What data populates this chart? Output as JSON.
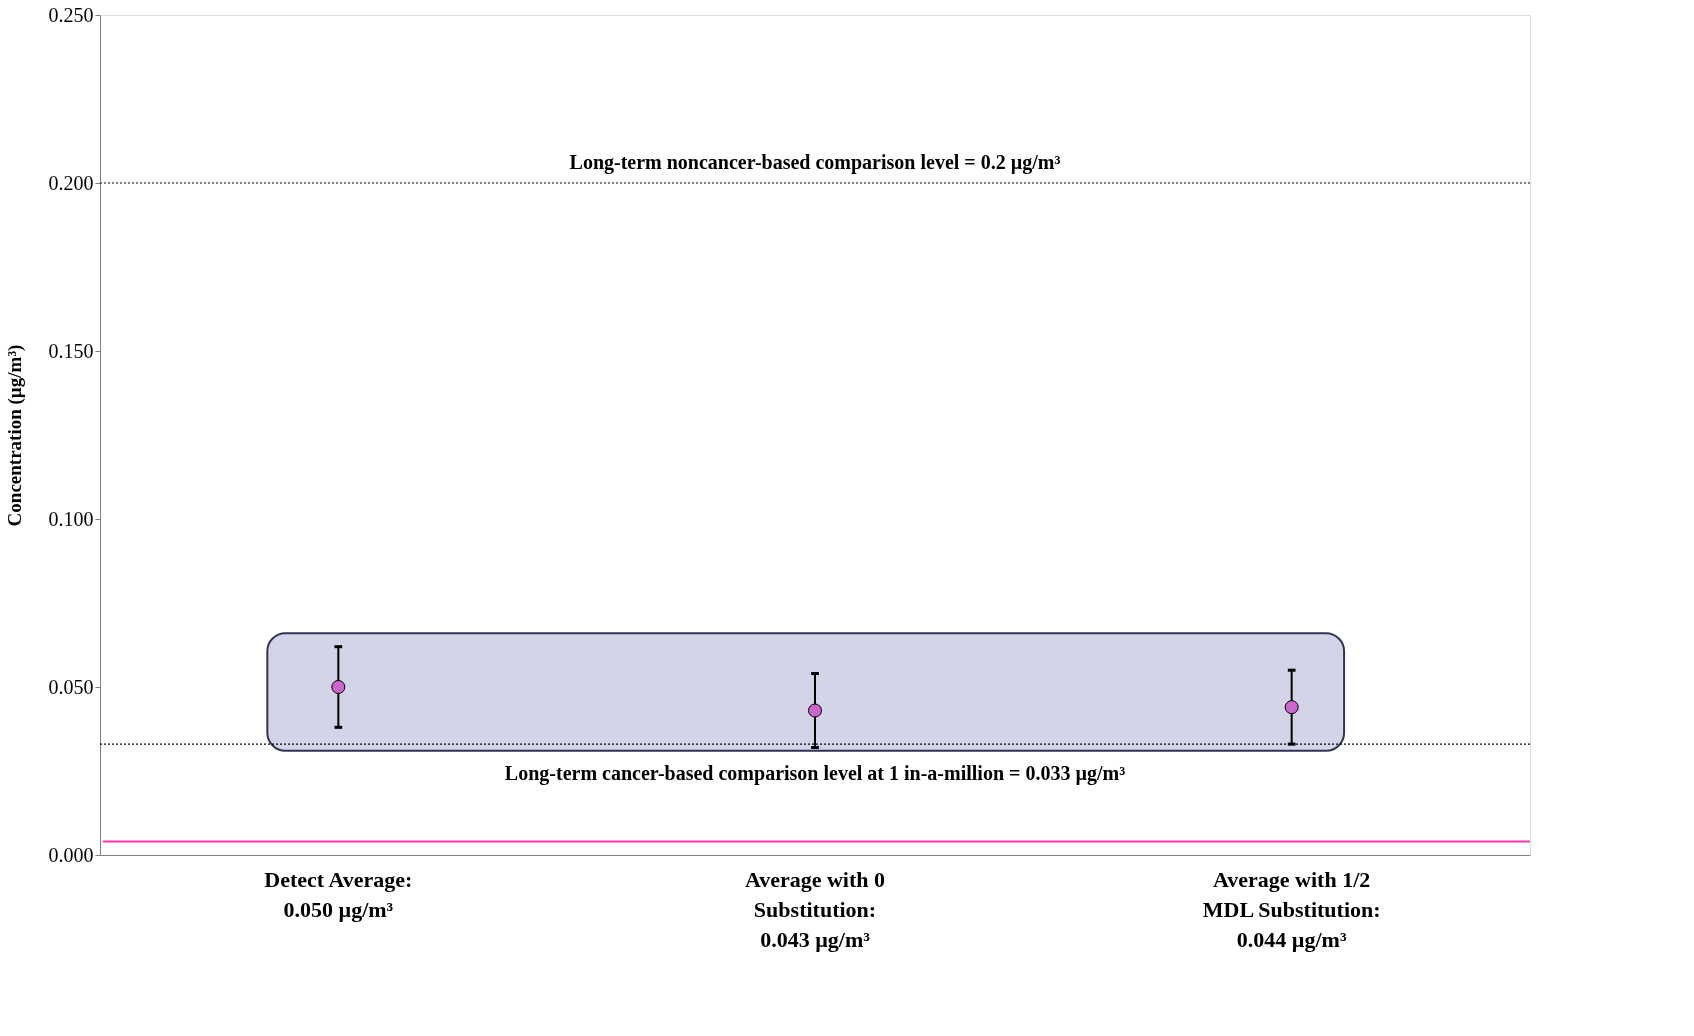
{
  "chart_data": {
    "type": "scatter",
    "ylabel": "Concentration (µg/m³)",
    "categories": [
      "Detect Average:\n0.050 µg/m³",
      "Average with  0\nSubstitution:\n0.043 µg/m³",
      "Average with  1/2\nMDL Substitution:\n0.044 µg/m³"
    ],
    "series": [
      {
        "color": "#cc66cc",
        "values": [
          0.05,
          0.043,
          0.044
        ],
        "errors": [
          [
            0.038,
            0.062
          ],
          [
            0.032,
            0.054
          ],
          [
            0.033,
            0.055
          ]
        ]
      }
    ],
    "marker": "circle",
    "ylim": [
      0,
      0.25
    ],
    "yticks": [
      {
        "value": 0,
        "label": "0.000"
      },
      {
        "value": 0.05,
        "label": "0.050"
      },
      {
        "value": 0.1,
        "label": "0.100"
      },
      {
        "value": 0.15,
        "label": "0.150"
      },
      {
        "value": 0.2,
        "label": "0.200"
      },
      {
        "value": 0.25,
        "label": "0.250"
      }
    ],
    "ref_lines": [
      {
        "axis": "y",
        "value": 0.2,
        "label": "Long-term noncancer-based comparison level = 0.2 µg/m³",
        "color": "#000000",
        "line_style": "dotted"
      },
      {
        "axis": "y",
        "value": 0.033,
        "label": "Long-term cancer-based comparison level at 1 in-a-million = 0.033 µg/m³",
        "color": "#000000",
        "line_style": "dotted"
      },
      {
        "axis": "y",
        "value": 0.004,
        "label": null,
        "color": "#ff33aa",
        "line_style": "solid"
      }
    ],
    "bands": [
      {
        "axis": "y",
        "from": 0.031,
        "to": 0.066,
        "label": null,
        "color": "#d4d4e8"
      }
    ],
    "grid": false
  }
}
